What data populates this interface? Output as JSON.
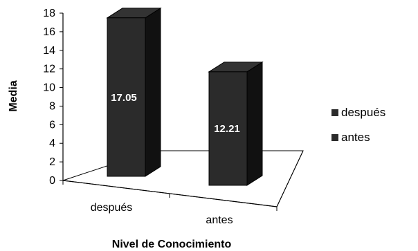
{
  "chart_data": {
    "type": "bar",
    "style": "3d-column",
    "categories": [
      "después",
      "antes"
    ],
    "values": [
      17.05,
      12.21
    ],
    "data_labels": [
      "17.05",
      "12.21"
    ],
    "series": [
      {
        "name": "después",
        "color": "#2b2b2b"
      },
      {
        "name": "antes",
        "color": "#2b2b2b"
      }
    ],
    "title": "",
    "xlabel": "Nivel de Conocimiento",
    "ylabel": "Media",
    "ylim": [
      0,
      18
    ],
    "yticks": [
      "0",
      "2",
      "4",
      "6",
      "8",
      "10",
      "12",
      "14",
      "16",
      "18"
    ],
    "grid": false,
    "legend_position": "right"
  }
}
